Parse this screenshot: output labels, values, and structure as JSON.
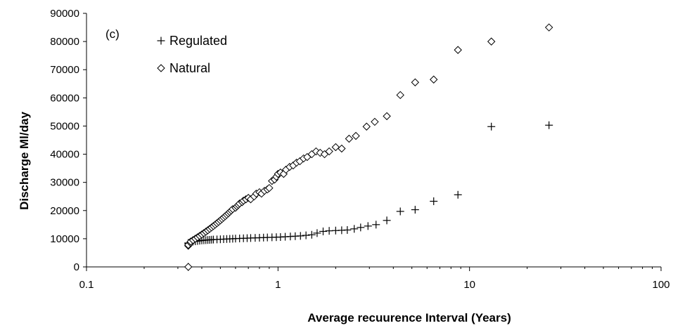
{
  "chart_data": {
    "type": "scatter",
    "panel_label": "(c)",
    "xlabel": "Average recuurence Interval (Years)",
    "ylabel": "Discharge Ml/day",
    "x_scale": "log",
    "xlim": [
      0.1,
      100
    ],
    "ylim": [
      0,
      90000
    ],
    "x_ticks": [
      0.1,
      1,
      10,
      100
    ],
    "x_tick_labels": [
      "0.1",
      "1",
      "10",
      "100"
    ],
    "y_ticks": [
      0,
      10000,
      20000,
      30000,
      40000,
      50000,
      60000,
      70000,
      80000,
      90000
    ],
    "y_tick_labels": [
      "0",
      "10000",
      "20000",
      "30000",
      "40000",
      "50000",
      "60000",
      "70000",
      "80000",
      "90000"
    ],
    "grid": false,
    "legend_position": "top-left",
    "series": [
      {
        "name": "Regulated",
        "marker": "plus",
        "x": [
          0.34,
          0.34,
          0.34,
          0.35,
          0.35,
          0.36,
          0.37,
          0.38,
          0.39,
          0.4,
          0.41,
          0.42,
          0.43,
          0.44,
          0.45,
          0.46,
          0.48,
          0.5,
          0.52,
          0.54,
          0.56,
          0.58,
          0.6,
          0.63,
          0.66,
          0.69,
          0.72,
          0.76,
          0.8,
          0.84,
          0.88,
          0.93,
          0.98,
          1.03,
          1.09,
          1.16,
          1.23,
          1.31,
          1.4,
          1.5,
          1.6,
          1.72,
          1.85,
          2.0,
          2.15,
          2.3,
          2.5,
          2.7,
          2.95,
          3.25,
          3.7,
          4.35,
          5.2,
          6.5,
          8.7,
          13.0,
          26.0
        ],
        "y": [
          0,
          8300,
          8500,
          8700,
          8900,
          9000,
          9100,
          9200,
          9300,
          9400,
          9450,
          9500,
          9550,
          9600,
          9650,
          9700,
          9750,
          9800,
          9850,
          9900,
          9950,
          10000,
          10050,
          10100,
          10150,
          10200,
          10250,
          10300,
          10350,
          10400,
          10450,
          10500,
          10550,
          10600,
          10700,
          10800,
          10900,
          11000,
          11200,
          11400,
          12000,
          12600,
          12800,
          12900,
          13000,
          13100,
          13500,
          14000,
          14500,
          15000,
          16500,
          19700,
          20300,
          23300,
          25600,
          49800,
          50300
        ]
      },
      {
        "name": "Natural",
        "marker": "diamond",
        "x": [
          0.34,
          0.34,
          0.34,
          0.35,
          0.35,
          0.36,
          0.37,
          0.38,
          0.39,
          0.4,
          0.41,
          0.42,
          0.43,
          0.44,
          0.45,
          0.46,
          0.47,
          0.48,
          0.49,
          0.5,
          0.51,
          0.52,
          0.53,
          0.54,
          0.55,
          0.56,
          0.57,
          0.58,
          0.6,
          0.61,
          0.62,
          0.63,
          0.65,
          0.66,
          0.68,
          0.7,
          0.72,
          0.75,
          0.77,
          0.8,
          0.82,
          0.85,
          0.88,
          0.9,
          0.93,
          0.96,
          0.98,
          1.0,
          1.03,
          1.07,
          1.1,
          1.15,
          1.2,
          1.25,
          1.3,
          1.36,
          1.42,
          1.5,
          1.58,
          1.66,
          1.75,
          1.85,
          2.0,
          2.15,
          2.35,
          2.55,
          2.9,
          3.2,
          3.7,
          4.35,
          5.2,
          6.5,
          8.7,
          13.0,
          26.0
        ],
        "y": [
          0,
          7500,
          7800,
          8500,
          9000,
          9500,
          10000,
          10500,
          11000,
          11500,
          12000,
          12500,
          13000,
          13500,
          14000,
          14500,
          15000,
          15500,
          16000,
          16500,
          17000,
          17500,
          18000,
          18500,
          19000,
          19500,
          20000,
          20500,
          21000,
          21500,
          22000,
          22500,
          23000,
          23500,
          24000,
          24500,
          24000,
          25000,
          26000,
          26500,
          26000,
          27000,
          27500,
          28000,
          30500,
          31000,
          32000,
          33000,
          33500,
          33000,
          34500,
          35500,
          36000,
          37000,
          37500,
          38500,
          39000,
          40000,
          41000,
          40500,
          40000,
          41000,
          42500,
          42000,
          45500,
          46500,
          49800,
          51500,
          53500,
          61000,
          65500,
          66500,
          77000,
          80000,
          85000
        ]
      }
    ]
  }
}
